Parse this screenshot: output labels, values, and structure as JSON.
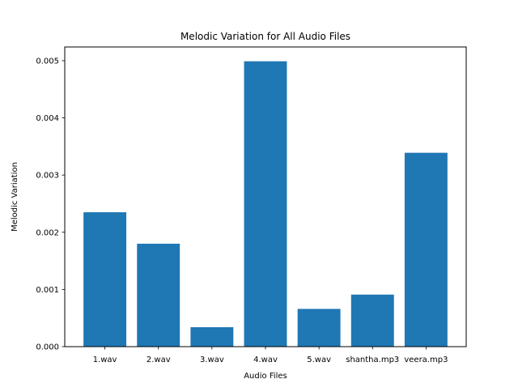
{
  "chart_data": {
    "type": "bar",
    "title": "Melodic Variation for All Audio Files",
    "xlabel": "Audio Files",
    "ylabel": "Melodic Variation",
    "categories": [
      "1.wav",
      "2.wav",
      "3.wav",
      "4.wav",
      "5.wav",
      "shantha.mp3",
      "veera.mp3"
    ],
    "values": [
      0.00235,
      0.0018,
      0.00034,
      0.00499,
      0.00066,
      0.00091,
      0.00339
    ],
    "ylim": [
      0,
      0.00524
    ],
    "yticks": [
      0,
      0.001,
      0.002,
      0.003,
      0.004,
      0.005
    ],
    "ytick_labels": [
      "0.000",
      "0.001",
      "0.002",
      "0.003",
      "0.004",
      "0.005"
    ],
    "bar_color": "#1f77b4",
    "grid": false,
    "legend": "none"
  }
}
